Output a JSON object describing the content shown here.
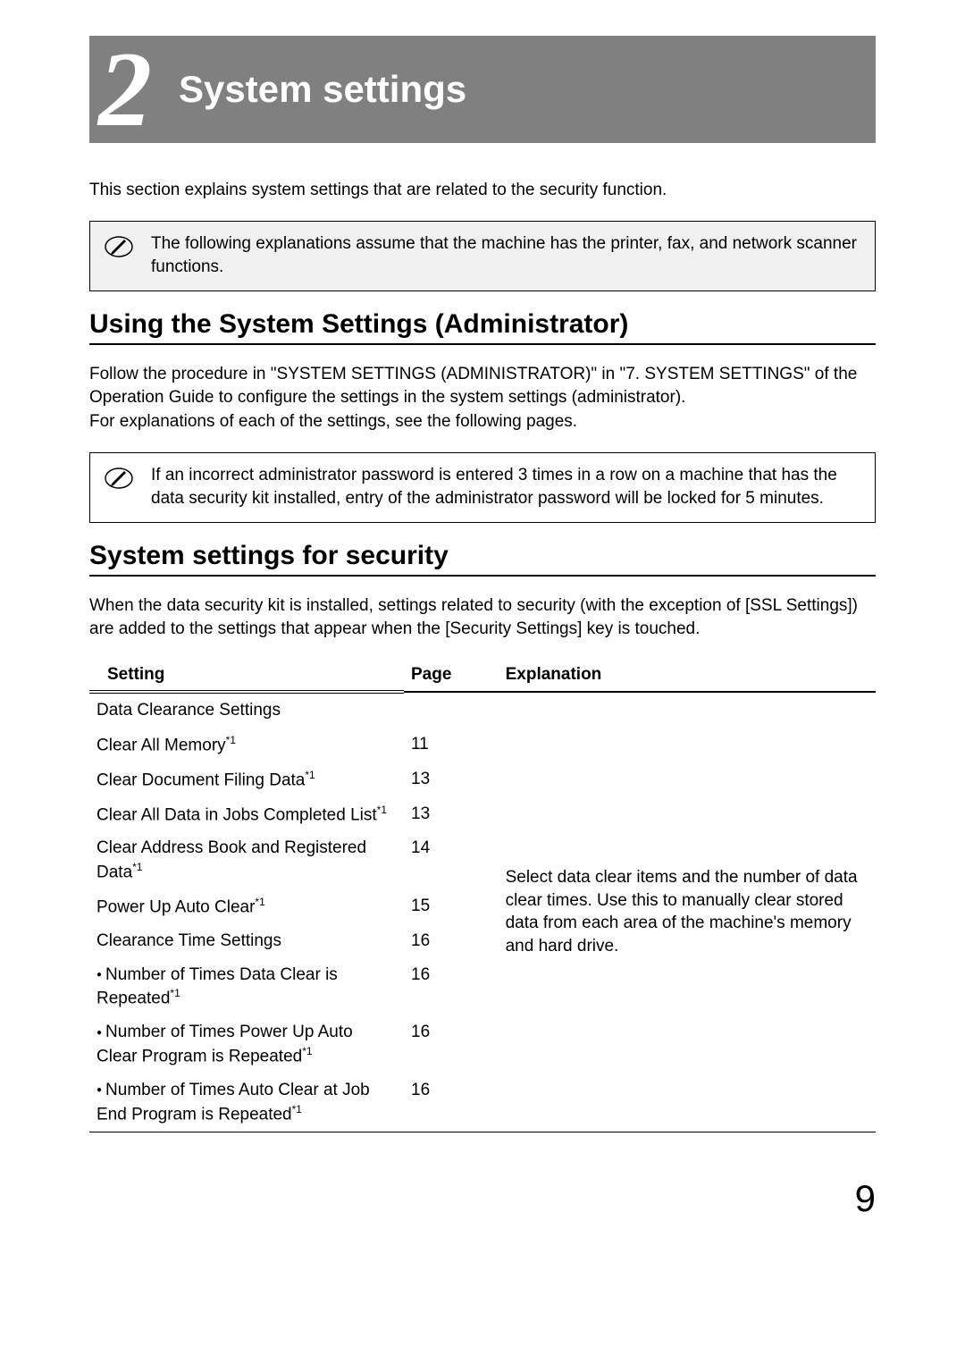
{
  "chapter": {
    "number": "2",
    "title": "System settings"
  },
  "intro": "This section explains system settings that are related to the security function.",
  "note1": "The following explanations assume that the machine has the printer, fax, and network scanner functions.",
  "section1": {
    "heading": "Using the System Settings (Administrator)",
    "body": "Follow the procedure in \"SYSTEM SETTINGS (ADMINISTRATOR)\" in \"7. SYSTEM SETTINGS\" of the Operation Guide to configure the settings in the system settings (administrator).\nFor explanations of each of the settings, see the following pages."
  },
  "note2": "If an incorrect administrator password is entered 3 times in a row on a machine that has the data security kit installed, entry of the administrator password will be locked for 5 minutes.",
  "section2": {
    "heading": "System settings for security",
    "body": "When the data security kit is installed, settings related to security (with the exception of [SSL Settings]) are added to the settings that appear when the [Security Settings] key is touched."
  },
  "table": {
    "headers": {
      "setting": "Setting",
      "page": "Page",
      "explanation": "Explanation"
    },
    "group_label": "Data Clearance Settings",
    "rows": [
      {
        "setting": "Clear All Memory",
        "sup": "*1",
        "page": "11",
        "indent": 1
      },
      {
        "setting": "Clear Document Filing Data",
        "sup": "*1",
        "page": "13",
        "indent": 1
      },
      {
        "setting": "Clear All Data in Jobs Completed List",
        "sup": "*1",
        "page": "13",
        "indent": 1
      },
      {
        "setting": "Clear Address Book and Registered Data",
        "sup": "*1",
        "page": "14",
        "indent": 1
      },
      {
        "setting": "Power Up Auto Clear",
        "sup": "*1",
        "page": "15",
        "indent": 1
      },
      {
        "setting": "Clearance Time Settings",
        "sup": "",
        "page": "16",
        "indent": 1
      },
      {
        "setting": "Number of Times Data Clear is Repeated",
        "sup": "*1",
        "page": "16",
        "indent": 2,
        "bullet": true
      },
      {
        "setting": "Number of Times Power Up Auto Clear Program is Repeated",
        "sup": "*1",
        "page": "16",
        "indent": 2,
        "bullet": true
      },
      {
        "setting": "Number of Times Auto Clear at Job End Program is Repeated",
        "sup": "*1",
        "page": "16",
        "indent": 2,
        "bullet": true
      }
    ],
    "explanation": "Select data clear items and the number of data clear times. Use this to manually clear stored data from each area of the machine's memory and hard drive."
  },
  "page_number": "9",
  "colors": {
    "header_bg": "#808080",
    "note_bg": "#f0f0f0",
    "text": "#000000",
    "bg": "#ffffff"
  }
}
